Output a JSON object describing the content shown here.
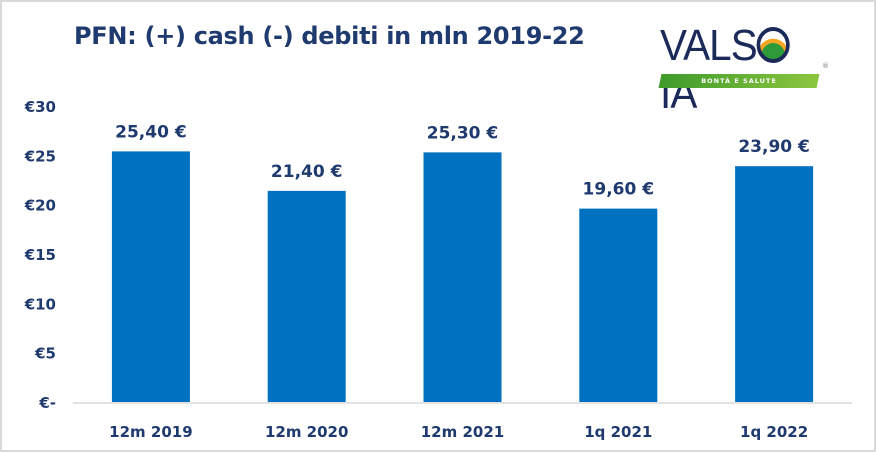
{
  "chart_data": {
    "type": "bar",
    "title": "PFN: (+) cash (-) debiti in mln 2019-22",
    "categories": [
      "12m 2019",
      "12m 2020",
      "12m 2021",
      "1q 2021",
      "1q 2022"
    ],
    "values": [
      25.4,
      21.4,
      25.3,
      19.6,
      23.9
    ],
    "data_labels": [
      "25,40 €",
      "21,40 €",
      "25,30 €",
      "19,60 €",
      "23,90 €"
    ],
    "yticks": [
      0,
      5,
      10,
      15,
      20,
      25,
      30
    ],
    "ytick_labels": [
      "€-",
      "€5",
      "€10",
      "€15",
      "€20",
      "€25",
      "€30"
    ],
    "ylim": [
      0,
      30
    ],
    "xlabel": "",
    "ylabel": "",
    "grid": false,
    "legend": "none",
    "bar_color": "#0070c0"
  },
  "logo": {
    "name": "VALSOIA",
    "tagline": "BONTÀ E SALUTE",
    "registered": "®"
  }
}
